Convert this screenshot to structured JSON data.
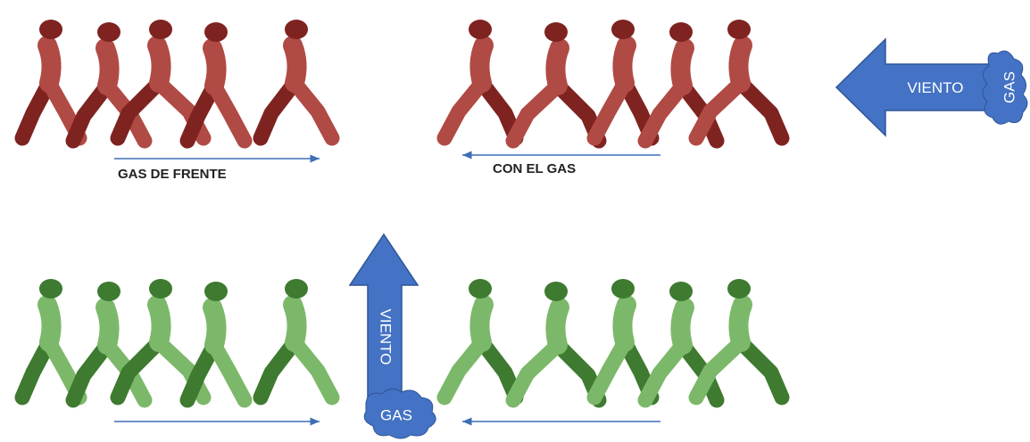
{
  "scenarios": [
    {
      "label": "GAS DE FRENTE"
    },
    {
      "label": "CON EL GAS"
    }
  ],
  "arrows": [
    {
      "label": "VIENTO",
      "source": "GAS"
    },
    {
      "label": "VIENTO",
      "source": "GAS"
    }
  ]
}
